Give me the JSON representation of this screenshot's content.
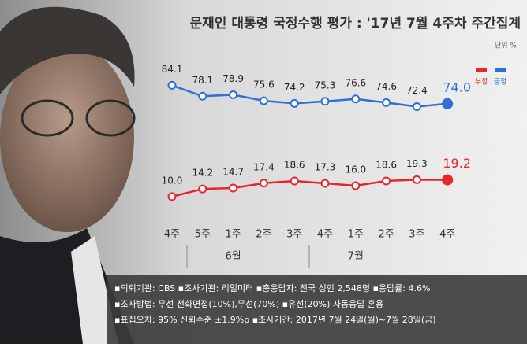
{
  "chart_data": {
    "type": "line",
    "title": "문재인 대통령 국정수행 평가 : '17년 7월 4주차 주간집계",
    "unit": "단위 %",
    "categories": [
      "4주",
      "5주",
      "1주",
      "2주",
      "3주",
      "4주",
      "1주",
      "2주",
      "3주",
      "4주"
    ],
    "month_labels": [
      "6월",
      "7월"
    ],
    "series": [
      {
        "name": "긍정",
        "color": "#2f6fd6",
        "values": [
          84.1,
          78.1,
          78.9,
          75.6,
          74.2,
          75.3,
          76.6,
          74.6,
          72.4,
          74.0
        ],
        "value_labels": [
          "84.1",
          "78.1",
          "78.9",
          "75.6",
          "74.2",
          "75.3",
          "76.6",
          "74.6",
          "72.4",
          "74.0"
        ]
      },
      {
        "name": "부정",
        "color": "#e8262a",
        "axis": "y2",
        "values": [
          10.0,
          14.2,
          14.7,
          17.4,
          18.6,
          17.3,
          16.0,
          18.6,
          19.3,
          19.2
        ],
        "value_labels": [
          "10.0",
          "14.2",
          "14.7",
          "17.4",
          "18.6",
          "17.3",
          "16.0",
          "18.6",
          "19.3",
          "19.2"
        ]
      }
    ],
    "legend_order": [
      1,
      0
    ],
    "ylim": [
      10,
      105
    ],
    "y2lim": [
      -3,
      92
    ],
    "notes": [
      "▪의뢰기관: CBS ▪조사기관: 리얼미터 ▪총응답자: 전국 성인 2,548명 ▪응답률: 4.6%",
      "▪조사방법: 무선 전화면접(10%),무선(70%) ▪유선(20%) 자동응답 혼용",
      "▪표집오차: 95% 신뢰수준 ±1.9%p ▪조사기간: 2017년 7월 24일(월)~7월 28일(금)"
    ]
  }
}
